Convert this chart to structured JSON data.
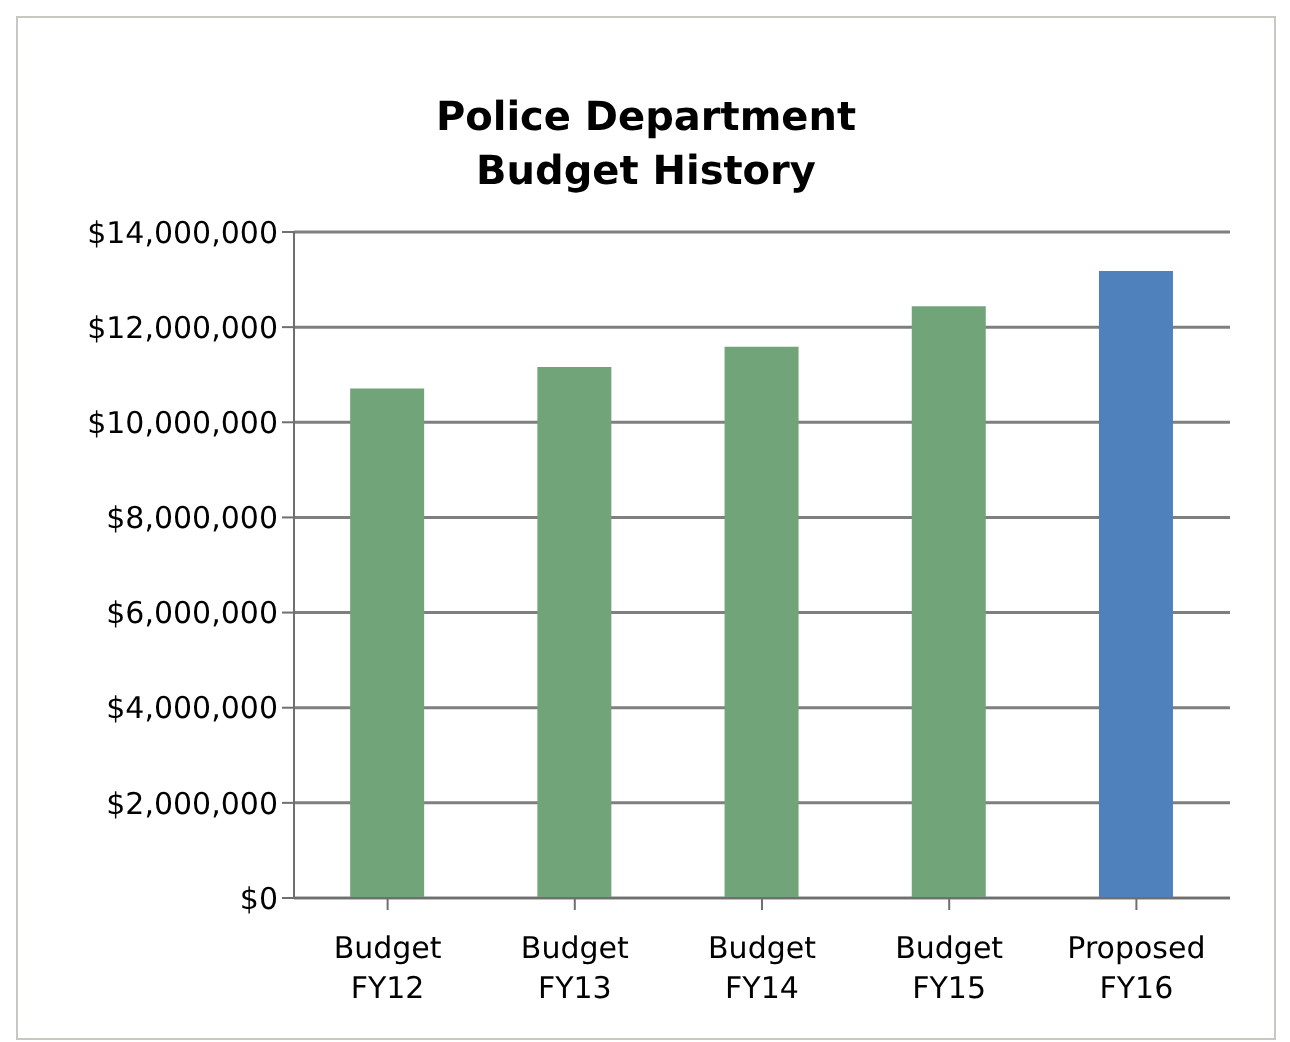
{
  "chart_data": {
    "type": "bar",
    "title": "Police Department\nBudget History",
    "categories": [
      "Budget FY12",
      "Budget FY13",
      "Budget FY14",
      "Budget FY15",
      "Proposed FY16"
    ],
    "values": [
      10710000,
      11160000,
      11590000,
      12440000,
      13180000
    ],
    "colors": [
      "#72a47a",
      "#72a47a",
      "#72a47a",
      "#72a47a",
      "#4f81bd"
    ],
    "ylim": [
      0,
      14000000
    ],
    "yticks": [
      {
        "value": 0,
        "label": "$0"
      },
      {
        "value": 2000000,
        "label": "$2,000,000"
      },
      {
        "value": 4000000,
        "label": "$4,000,000"
      },
      {
        "value": 6000000,
        "label": "$6,000,000"
      },
      {
        "value": 8000000,
        "label": "$8,000,000"
      },
      {
        "value": 10000000,
        "label": "$10,000,000"
      },
      {
        "value": 12000000,
        "label": "$12,000,000"
      },
      {
        "value": 14000000,
        "label": "$14,000,000"
      }
    ],
    "grid": "y"
  }
}
